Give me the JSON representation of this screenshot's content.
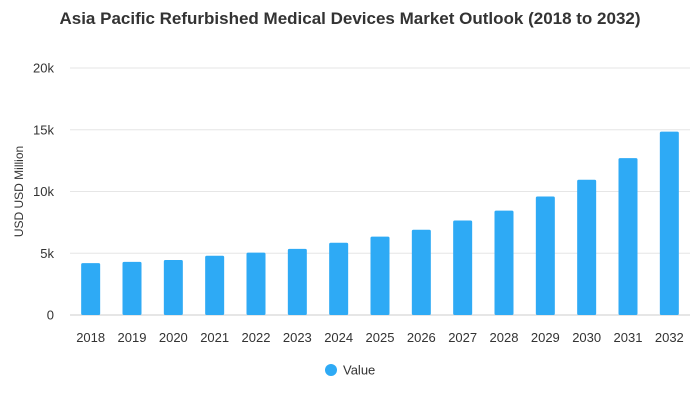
{
  "chart_data": {
    "type": "bar",
    "title": "Asia Pacific Refurbished Medical Devices Market Outlook (2018 to 2032)",
    "xlabel": "",
    "ylabel": "USD USD Million",
    "ylim": [
      0,
      20000
    ],
    "yticks": [
      0,
      5000,
      10000,
      15000,
      20000
    ],
    "ytick_labels": [
      "0",
      "5k",
      "10k",
      "15k",
      "20k"
    ],
    "grid": true,
    "legend_position": "bottom-center",
    "categories": [
      "2018",
      "2019",
      "2020",
      "2021",
      "2022",
      "2023",
      "2024",
      "2025",
      "2026",
      "2027",
      "2028",
      "2029",
      "2030",
      "2031",
      "2032"
    ],
    "series": [
      {
        "name": "Value",
        "color": "#2eaaf5",
        "values": [
          4200,
          4300,
          4450,
          4800,
          5050,
          5350,
          5850,
          6350,
          6900,
          7650,
          8450,
          9600,
          10950,
          12700,
          14850
        ]
      }
    ]
  }
}
